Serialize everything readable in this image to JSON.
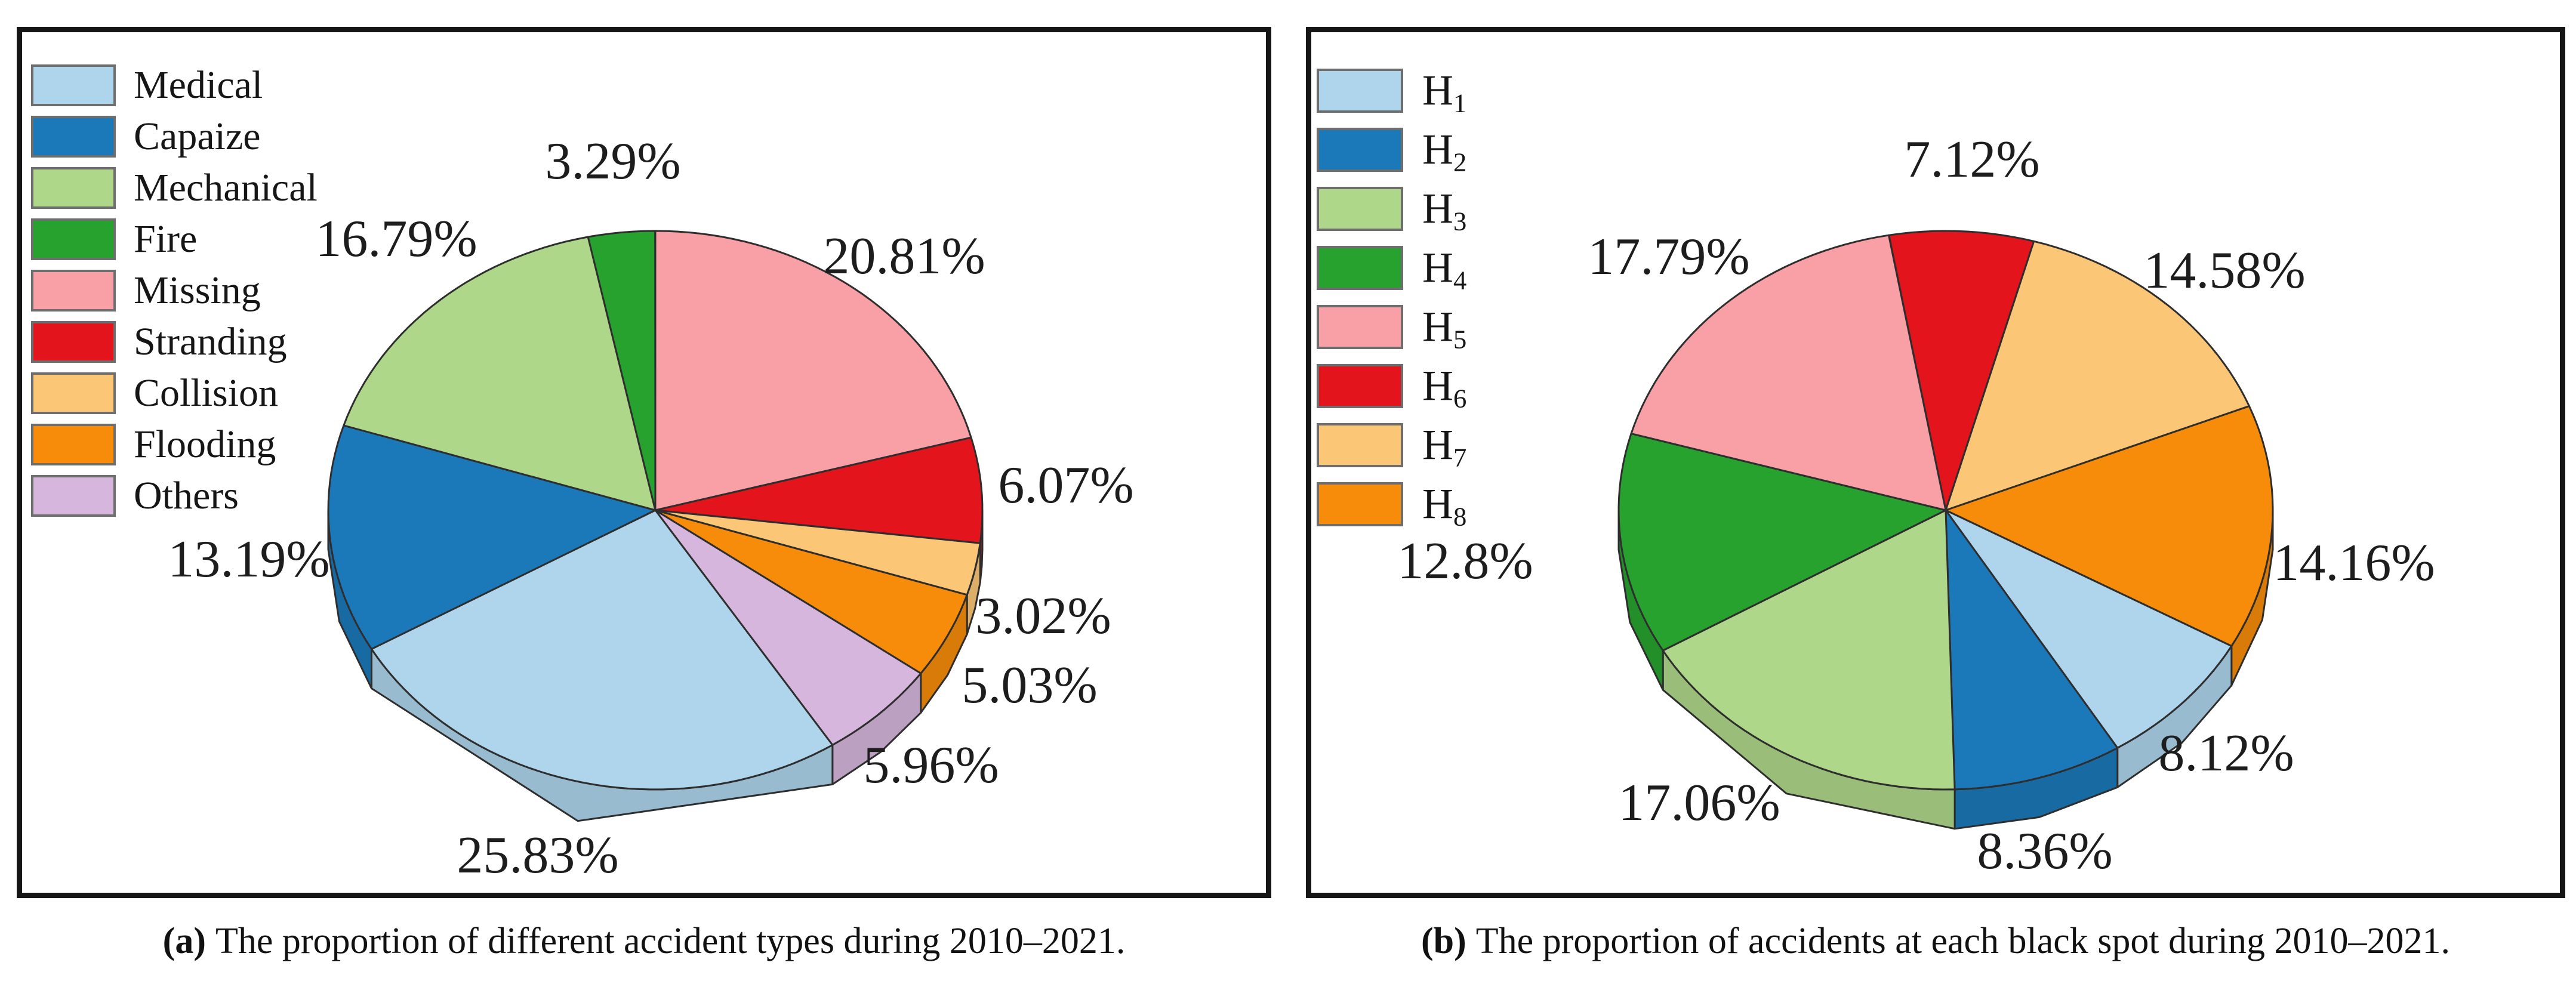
{
  "panels": [
    {
      "id": "a",
      "caption_marker": "(a)",
      "caption_text": "The proportion of different accident types during 2010–2021.",
      "legend": [
        {
          "label": "Medical",
          "color": "#AED5EB"
        },
        {
          "label": "Capaize",
          "color": "#1B78B9"
        },
        {
          "label": "Mechanical",
          "color": "#AFD78A"
        },
        {
          "label": "Fire",
          "color": "#27A22F"
        },
        {
          "label": "Missing",
          "color": "#F99FA6"
        },
        {
          "label": "Stranding",
          "color": "#E3141C"
        },
        {
          "label": "Collision",
          "color": "#FBC676"
        },
        {
          "label": "Flooding",
          "color": "#F78C0A"
        },
        {
          "label": "Others",
          "color": "#D6B6DC"
        }
      ]
    },
    {
      "id": "b",
      "caption_marker": "(b)",
      "caption_text": "The proportion of accidents at each black spot during 2010–2021.",
      "legend": [
        {
          "label": "H1",
          "label_base": "H",
          "label_sub": "1",
          "color": "#AED5EB"
        },
        {
          "label": "H2",
          "label_base": "H",
          "label_sub": "2",
          "color": "#1B78B9"
        },
        {
          "label": "H3",
          "label_base": "H",
          "label_sub": "3",
          "color": "#AFD78A"
        },
        {
          "label": "H4",
          "label_base": "H",
          "label_sub": "4",
          "color": "#27A22F"
        },
        {
          "label": "H5",
          "label_base": "H",
          "label_sub": "5",
          "color": "#F99FA6"
        },
        {
          "label": "H6",
          "label_base": "H",
          "label_sub": "6",
          "color": "#E3141C"
        },
        {
          "label": "H7",
          "label_base": "H",
          "label_sub": "7",
          "color": "#FBC676"
        },
        {
          "label": "H8",
          "label_base": "H",
          "label_sub": "8",
          "color": "#F78C0A"
        }
      ]
    }
  ],
  "chart_data": [
    {
      "type": "pie",
      "style": "3d",
      "panel": "a",
      "title": "The proportion of different accident types during 2010–2021",
      "start_angle_deg": 0,
      "clockwise": true,
      "legend_position": "upper-left",
      "slices": [
        {
          "category": "Missing",
          "value": 20.81,
          "display": "20.81%",
          "color": "#F99FA6"
        },
        {
          "category": "Stranding",
          "value": 6.07,
          "display": "6.07%",
          "color": "#E3141C"
        },
        {
          "category": "Collision",
          "value": 3.02,
          "display": "3.02%",
          "color": "#FBC676"
        },
        {
          "category": "Flooding",
          "value": 5.03,
          "display": "5.03%",
          "color": "#F78C0A"
        },
        {
          "category": "Others",
          "value": 5.96,
          "display": "5.96%",
          "color": "#D6B6DC"
        },
        {
          "category": "Medical",
          "value": 25.83,
          "display": "25.83%",
          "color": "#AED5EB"
        },
        {
          "category": "Capaize",
          "value": 13.19,
          "display": "13.19%",
          "color": "#1B78B9"
        },
        {
          "category": "Mechanical",
          "value": 16.79,
          "display": "16.79%",
          "color": "#AFD78A"
        },
        {
          "category": "Fire",
          "value": 3.29,
          "display": "3.29%",
          "color": "#27A22F"
        }
      ]
    },
    {
      "type": "pie",
      "style": "3d",
      "panel": "b",
      "title": "The proportion of accidents at each black spot during 2010–2021",
      "start_angle_deg": -10,
      "clockwise": true,
      "legend_position": "upper-left",
      "slices": [
        {
          "category": "H6",
          "value": 7.12,
          "display": "7.12%",
          "color": "#E3141C"
        },
        {
          "category": "H7",
          "value": 14.58,
          "display": "14.58%",
          "color": "#FBC676"
        },
        {
          "category": "H8",
          "value": 14.16,
          "display": "14.16%",
          "color": "#F78C0A"
        },
        {
          "category": "H1",
          "value": 8.12,
          "display": "8.12%",
          "color": "#AED5EB"
        },
        {
          "category": "H2",
          "value": 8.36,
          "display": "8.36%",
          "color": "#1B78B9"
        },
        {
          "category": "H3",
          "value": 17.06,
          "display": "17.06%",
          "color": "#AFD78A"
        },
        {
          "category": "H4",
          "value": 12.8,
          "display": "12.8%",
          "color": "#27A22F"
        },
        {
          "category": "H5",
          "value": 17.79,
          "display": "17.79%",
          "color": "#F99FA6"
        }
      ]
    }
  ]
}
